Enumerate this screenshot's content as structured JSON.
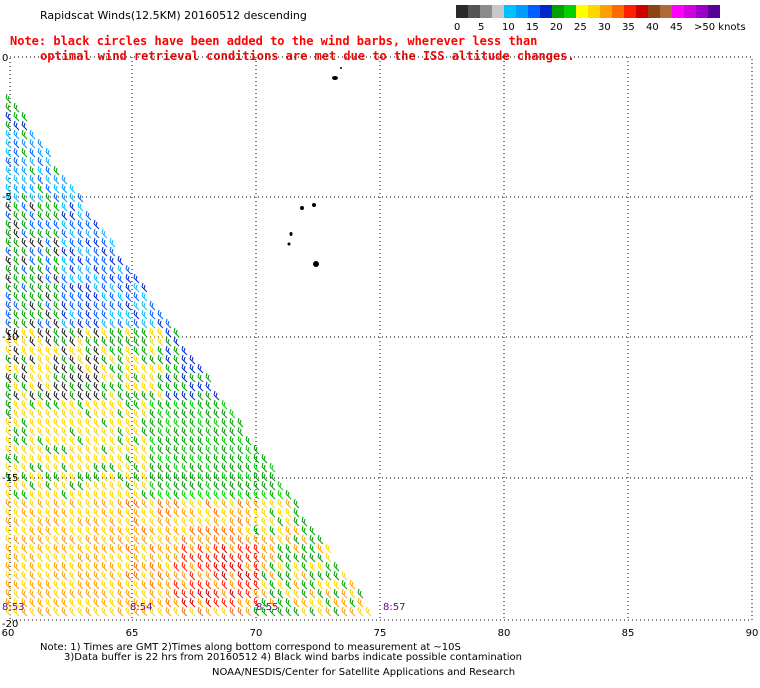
{
  "title": "Rapidscat Winds(12.5KM) 20160512 descending",
  "warning_note": [
    "Note: black circles have been added to the wind barbs, wherever less than",
    "optimal wind retrieval conditions are met due to the ISS altitude changes."
  ],
  "legend": {
    "colors": [
      "#2a2a2a",
      "#555555",
      "#8c8c8c",
      "#c8c8c8",
      "#00c0ff",
      "#009cff",
      "#0060ff",
      "#0028c8",
      "#00a000",
      "#00d000",
      "#ffff00",
      "#ffd700",
      "#ffa000",
      "#ff6a00",
      "#ff1e00",
      "#d00000",
      "#8b4513",
      "#b06a3a",
      "#ff00ff",
      "#d000e0",
      "#9c00c8",
      "#5a0096"
    ],
    "labels": [
      "0",
      "5",
      "10",
      "15",
      "20",
      "25",
      "30",
      "35",
      "40",
      "45",
      ">50 knots"
    ]
  },
  "map": {
    "lon_ticks": [
      "60",
      "65",
      "70",
      "75",
      "80",
      "85",
      "90"
    ],
    "lat_ticks": [
      "0",
      "-5",
      "-10",
      "-15",
      "-20"
    ],
    "time_labels": [
      "8:53",
      "8:54",
      "8:55",
      "8:57"
    ]
  },
  "footer": {
    "notes": [
      "Note: 1) Times are GMT 2)Times along bottom correspond to measurement at ~10S",
      "3)Data buffer is 22 hrs from 20160512 4) Black wind barbs indicate possible contamination"
    ],
    "credit": "NOAA/NESDIS/Center for Satellite Applications and Research"
  }
}
